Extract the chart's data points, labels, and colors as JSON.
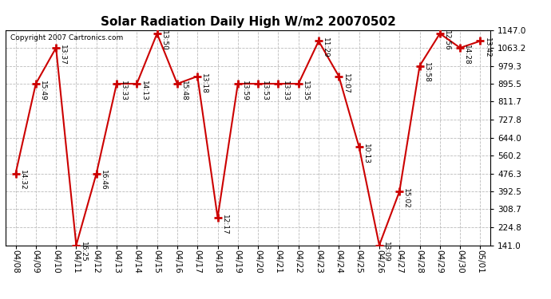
{
  "title": "Solar Radiation Daily High W/m2 20070502",
  "copyright": "Copyright 2007 Cartronics.com",
  "dates": [
    "04/08",
    "04/09",
    "04/10",
    "04/11",
    "04/12",
    "04/13",
    "04/14",
    "04/15",
    "04/16",
    "04/17",
    "04/18",
    "04/19",
    "04/20",
    "04/21",
    "04/22",
    "04/23",
    "04/24",
    "04/25",
    "04/26",
    "04/27",
    "04/28",
    "04/29",
    "04/30",
    "05/01"
  ],
  "values": [
    476.3,
    895.5,
    1063.2,
    141.0,
    476.3,
    895.5,
    895.5,
    1130.0,
    895.5,
    930.0,
    270.0,
    895.5,
    895.5,
    895.5,
    895.5,
    1095.0,
    930.0,
    600.0,
    141.0,
    392.5,
    979.3,
    1130.0,
    1063.2,
    1095.0
  ],
  "labels": [
    "14:32",
    "15:49",
    "13:37",
    "16:25",
    "16:46",
    "13:33",
    "14:13",
    "13:50",
    "15:48",
    "13:18",
    "12:17",
    "13:59",
    "13:53",
    "13:33",
    "13:35",
    "11:29",
    "12:07",
    "10:13",
    "13:09",
    "15:02",
    "13:58",
    "12:56",
    "14:28",
    "13:42"
  ],
  "ylim": [
    141.0,
    1147.0
  ],
  "yticks": [
    141.0,
    224.8,
    308.7,
    392.5,
    476.3,
    560.2,
    644.0,
    727.8,
    811.7,
    895.5,
    979.3,
    1063.2,
    1147.0
  ],
  "line_color": "#cc0000",
  "marker_color": "#cc0000",
  "bg_color": "#ffffff",
  "grid_color": "#bbbbbb",
  "title_fontsize": 11,
  "label_fontsize": 6.5,
  "tick_fontsize": 7.5
}
